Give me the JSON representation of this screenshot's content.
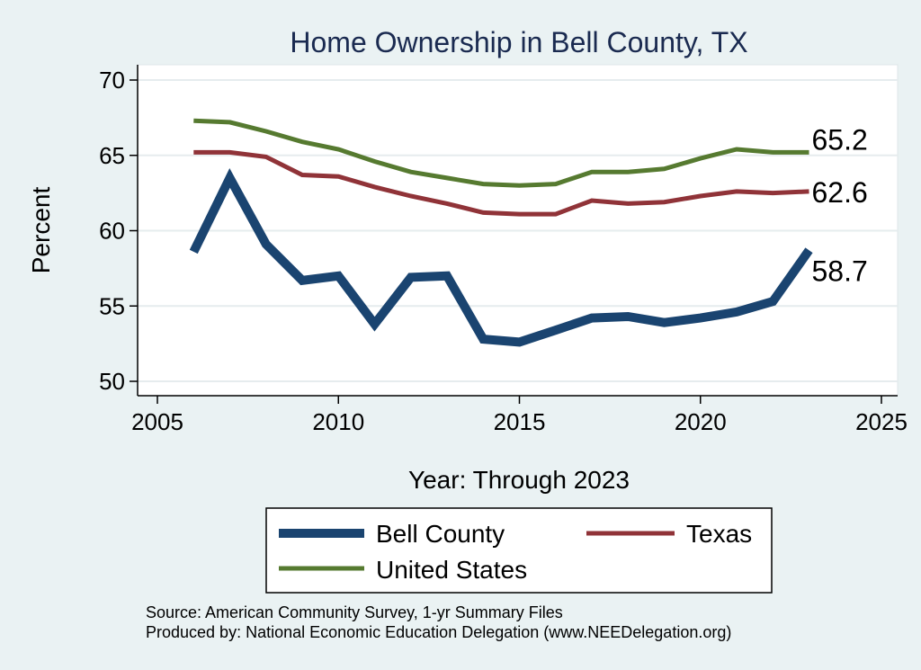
{
  "chart_data": {
    "type": "line",
    "title": "Home Ownership in Bell County, TX",
    "xlabel": "Year: Through 2023",
    "ylabel": "Percent",
    "xlim": [
      2005,
      2025
    ],
    "ylim": [
      50,
      70
    ],
    "x_ticks": [
      2005,
      2010,
      2015,
      2020,
      2025
    ],
    "y_ticks": [
      50,
      55,
      60,
      65,
      70
    ],
    "grid": true,
    "x": [
      2006,
      2007,
      2008,
      2009,
      2010,
      2011,
      2012,
      2013,
      2014,
      2015,
      2016,
      2017,
      2018,
      2019,
      2020,
      2021,
      2022,
      2023
    ],
    "series": [
      {
        "name": "Bell County",
        "color": "#1a4470",
        "width": 10,
        "values": [
          58.6,
          63.5,
          59.1,
          56.7,
          57.0,
          53.8,
          56.9,
          57.0,
          52.8,
          52.6,
          53.4,
          54.2,
          54.3,
          53.9,
          54.2,
          54.6,
          55.3,
          58.7
        ],
        "end_label": "58.7"
      },
      {
        "name": "Texas",
        "color": "#903338",
        "width": 5,
        "values": [
          65.2,
          65.2,
          64.9,
          63.7,
          63.6,
          62.9,
          62.3,
          61.8,
          61.2,
          61.1,
          61.1,
          62.0,
          61.8,
          61.9,
          62.3,
          62.6,
          62.5,
          62.6
        ],
        "end_label": "62.6"
      },
      {
        "name": "United States",
        "color": "#567a30",
        "width": 5,
        "values": [
          67.3,
          67.2,
          66.6,
          65.9,
          65.4,
          64.6,
          63.9,
          63.5,
          63.1,
          63.0,
          63.1,
          63.9,
          63.9,
          64.1,
          64.8,
          65.4,
          65.2,
          65.2
        ],
        "end_label": "65.2"
      }
    ],
    "legend": {
      "placement": "bottom",
      "entries": [
        "Bell County",
        "Texas",
        "United States"
      ]
    },
    "notes": [
      "Source: American Community Survey, 1-yr Summary Files",
      "Produced by: National Economic Education Delegation (www.NEEDelegation.org)"
    ]
  }
}
